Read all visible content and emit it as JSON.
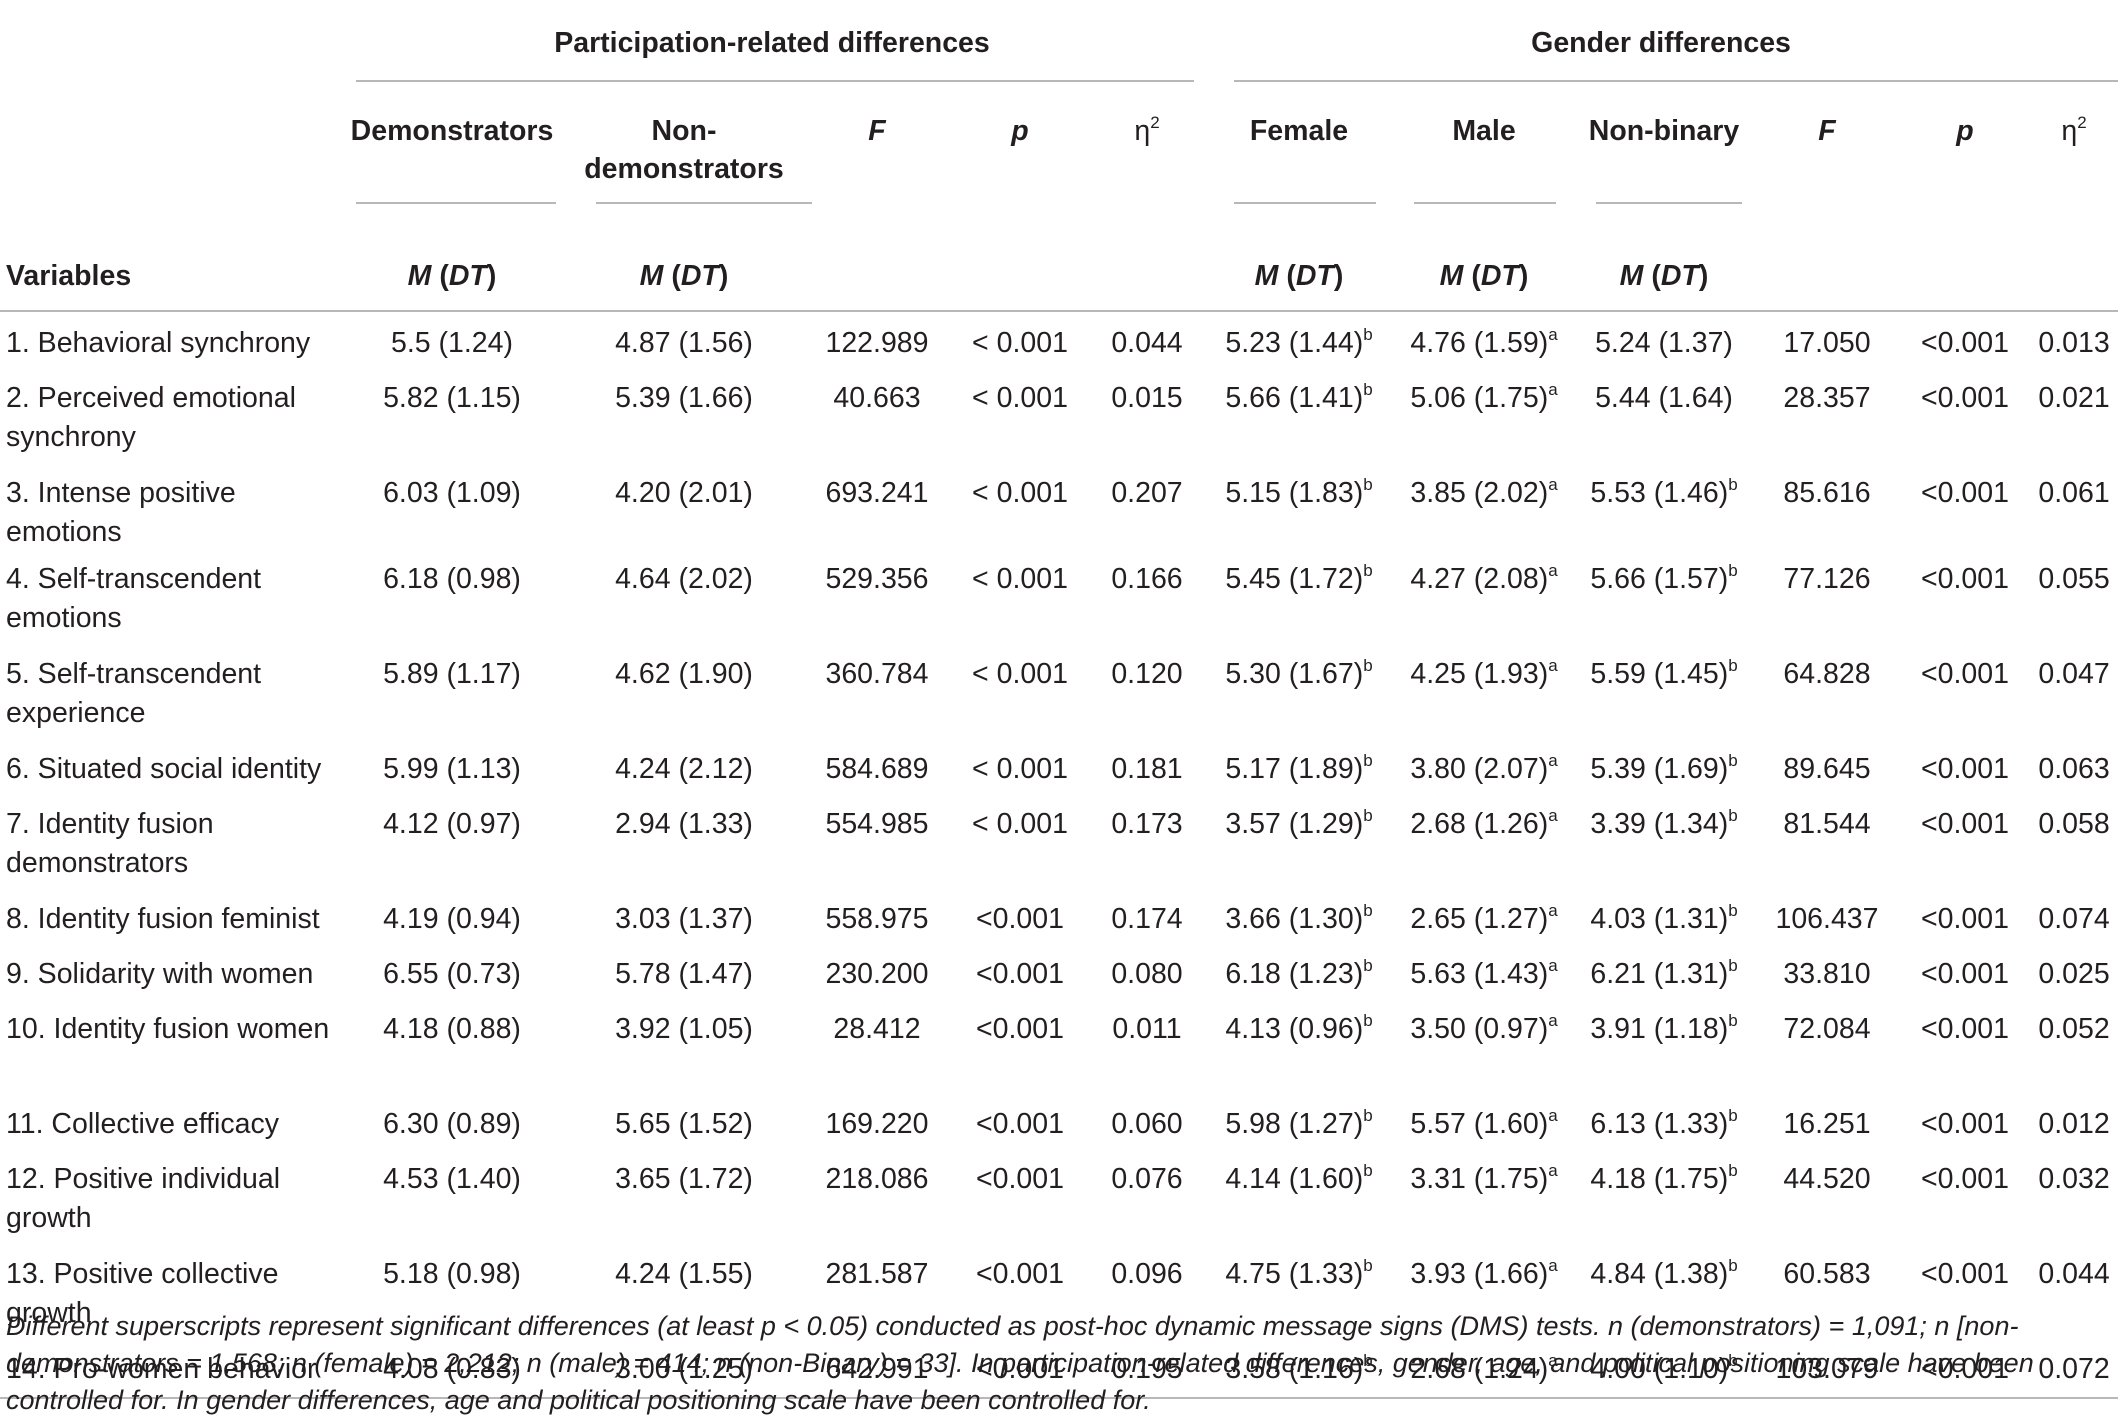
{
  "table": {
    "group_headers": {
      "participation": "Participation-related differences",
      "gender": "Gender differences"
    },
    "sub_headers": {
      "demonstrators": "Demonstrators",
      "non_demonstrators_1": "Non-",
      "non_demonstrators_2": "demonstrators",
      "F": "F",
      "p": "p",
      "eta_base": "η",
      "eta_exp": "2",
      "female": "Female",
      "male": "Male",
      "non_binary": "Non-binary"
    },
    "variables_label": "Variables",
    "md_label": {
      "M": "M",
      "open": " (",
      "DT": "DT",
      "close": ")"
    },
    "rows": [
      {
        "label": "1. Behavioral synchrony",
        "dem": "5.5 (1.24)",
        "non": "4.87 (1.56)",
        "F1": "122.989",
        "p1": "< 0.001",
        "eta1": "0.044",
        "fem": "5.23 (1.44)",
        "fem_sup": "b",
        "male": "4.76 (1.59)",
        "male_sup": "a",
        "nb": "5.24 (1.37)",
        "nb_sup": "",
        "F2": "17.050",
        "p2": "<0.001",
        "eta2": "0.013"
      },
      {
        "label": "2. Perceived emotional synchrony",
        "dem": "5.82 (1.15)",
        "non": "5.39 (1.66)",
        "F1": "40.663",
        "p1": "< 0.001",
        "eta1": "0.015",
        "fem": "5.66 (1.41)",
        "fem_sup": "b",
        "male": "5.06 (1.75)",
        "male_sup": "a",
        "nb": "5.44 (1.64)",
        "nb_sup": "",
        "F2": "28.357",
        "p2": "<0.001",
        "eta2": "0.021"
      },
      {
        "label": "3. Intense positive emotions",
        "dem": "6.03 (1.09)",
        "non": "4.20 (2.01)",
        "F1": "693.241",
        "p1": "< 0.001",
        "eta1": "0.207",
        "fem": "5.15 (1.83)",
        "fem_sup": "b",
        "male": "3.85 (2.02)",
        "male_sup": "a",
        "nb": "5.53 (1.46)",
        "nb_sup": "b",
        "F2": "85.616",
        "p2": "<0.001",
        "eta2": "0.061"
      },
      {
        "label": "4. Self-transcendent emotions",
        "dem": "6.18 (0.98)",
        "non": "4.64 (2.02)",
        "F1": "529.356",
        "p1": "< 0.001",
        "eta1": "0.166",
        "fem": "5.45 (1.72)",
        "fem_sup": "b",
        "male": "4.27 (2.08)",
        "male_sup": "a",
        "nb": "5.66 (1.57)",
        "nb_sup": "b",
        "F2": "77.126",
        "p2": "<0.001",
        "eta2": "0.055"
      },
      {
        "label": "5. Self-transcendent experience",
        "dem": "5.89 (1.17)",
        "non": "4.62 (1.90)",
        "F1": "360.784",
        "p1": "< 0.001",
        "eta1": "0.120",
        "fem": "5.30 (1.67)",
        "fem_sup": "b",
        "male": "4.25 (1.93)",
        "male_sup": "a",
        "nb": "5.59 (1.45)",
        "nb_sup": "b",
        "F2": "64.828",
        "p2": "<0.001",
        "eta2": "0.047"
      },
      {
        "label": "6. Situated social identity",
        "dem": "5.99 (1.13)",
        "non": "4.24 (2.12)",
        "F1": "584.689",
        "p1": "< 0.001",
        "eta1": "0.181",
        "fem": "5.17 (1.89)",
        "fem_sup": "b",
        "male": "3.80 (2.07)",
        "male_sup": "a",
        "nb": "5.39 (1.69)",
        "nb_sup": "b",
        "F2": "89.645",
        "p2": "<0.001",
        "eta2": "0.063"
      },
      {
        "label": "7. Identity fusion demonstrators",
        "dem": "4.12 (0.97)",
        "non": "2.94 (1.33)",
        "F1": "554.985",
        "p1": "< 0.001",
        "eta1": "0.173",
        "fem": "3.57 (1.29)",
        "fem_sup": "b",
        "male": "2.68 (1.26)",
        "male_sup": "a",
        "nb": "3.39 (1.34)",
        "nb_sup": "b",
        "F2": "81.544",
        "p2": "<0.001",
        "eta2": "0.058"
      },
      {
        "label": "8. Identity fusion feminist",
        "dem": "4.19 (0.94)",
        "non": "3.03 (1.37)",
        "F1": "558.975",
        "p1": "<0.001",
        "eta1": "0.174",
        "fem": "3.66 (1.30)",
        "fem_sup": "b",
        "male": "2.65 (1.27)",
        "male_sup": "a",
        "nb": "4.03 (1.31)",
        "nb_sup": "b",
        "F2": "106.437",
        "p2": "<0.001",
        "eta2": "0.074"
      },
      {
        "label": "9. Solidarity with women",
        "dem": "6.55 (0.73)",
        "non": "5.78 (1.47)",
        "F1": "230.200",
        "p1": "<0.001",
        "eta1": "0.080",
        "fem": "6.18 (1.23)",
        "fem_sup": "b",
        "male": "5.63 (1.43)",
        "male_sup": "a",
        "nb": "6.21 (1.31)",
        "nb_sup": "b",
        "F2": "33.810",
        "p2": "<0.001",
        "eta2": "0.025"
      },
      {
        "label": "10. Identity fusion women",
        "dem": "4.18 (0.88)",
        "non": "3.92 (1.05)",
        "F1": "28.412",
        "p1": "<0.001",
        "eta1": "0.011",
        "fem": "4.13 (0.96)",
        "fem_sup": "b",
        "male": "3.50 (0.97)",
        "male_sup": "a",
        "nb": "3.91 (1.18)",
        "nb_sup": "b",
        "F2": "72.084",
        "p2": "<0.001",
        "eta2": "0.052"
      },
      {
        "label": "11. Collective efficacy",
        "dem": "6.30 (0.89)",
        "non": "5.65 (1.52)",
        "F1": "169.220",
        "p1": "<0.001",
        "eta1": "0.060",
        "fem": "5.98 (1.27)",
        "fem_sup": "b",
        "male": "5.57 (1.60)",
        "male_sup": "a",
        "nb": "6.13 (1.33)",
        "nb_sup": "b",
        "F2": "16.251",
        "p2": "<0.001",
        "eta2": "0.012"
      },
      {
        "label": "12. Positive individual growth",
        "dem": "4.53 (1.40)",
        "non": "3.65 (1.72)",
        "F1": "218.086",
        "p1": "<0.001",
        "eta1": "0.076",
        "fem": "4.14 (1.60)",
        "fem_sup": "b",
        "male": "3.31 (1.75)",
        "male_sup": "a",
        "nb": "4.18 (1.75)",
        "nb_sup": "b",
        "F2": "44.520",
        "p2": "<0.001",
        "eta2": "0.032"
      },
      {
        "label": "13. Positive collective growth",
        "dem": "5.18 (0.98)",
        "non": "4.24 (1.55)",
        "F1": "281.587",
        "p1": "<0.001",
        "eta1": "0.096",
        "fem": "4.75 (1.33)",
        "fem_sup": "b",
        "male": "3.93 (1.66)",
        "male_sup": "a",
        "nb": "4.84 (1.38)",
        "nb_sup": "b",
        "F2": "60.583",
        "p2": "<0.001",
        "eta2": "0.044"
      },
      {
        "label": "14. Pro-women behavior",
        "dem": "4.08 (0.83)",
        "non": "3.00 (1.25)",
        "F1": "642.991",
        "p1": "<0.001",
        "eta1": "0.195",
        "fem": "3.58 (1.16)",
        "fem_sup": "b",
        "male": "2.68 (1.24)",
        "male_sup": "a",
        "nb": "4.00 (1.10)",
        "nb_sup": "b",
        "F2": "103.079",
        "p2": "<0.001",
        "eta2": "0.072"
      }
    ]
  },
  "note": "Different superscripts represent significant differences (at least p < 0.05) conducted as post-hoc dynamic message signs (DMS) tests. n (demonstrators) = 1,091; n [non-demonstrators = 1,568; n (female) = 2,212; n (male) = 414; n (non-Binary) = 33]. In participation-related differences, gender, age, and political positioning scale have been controlled for. In gender differences, age and political positioning scale have been controlled for."
}
